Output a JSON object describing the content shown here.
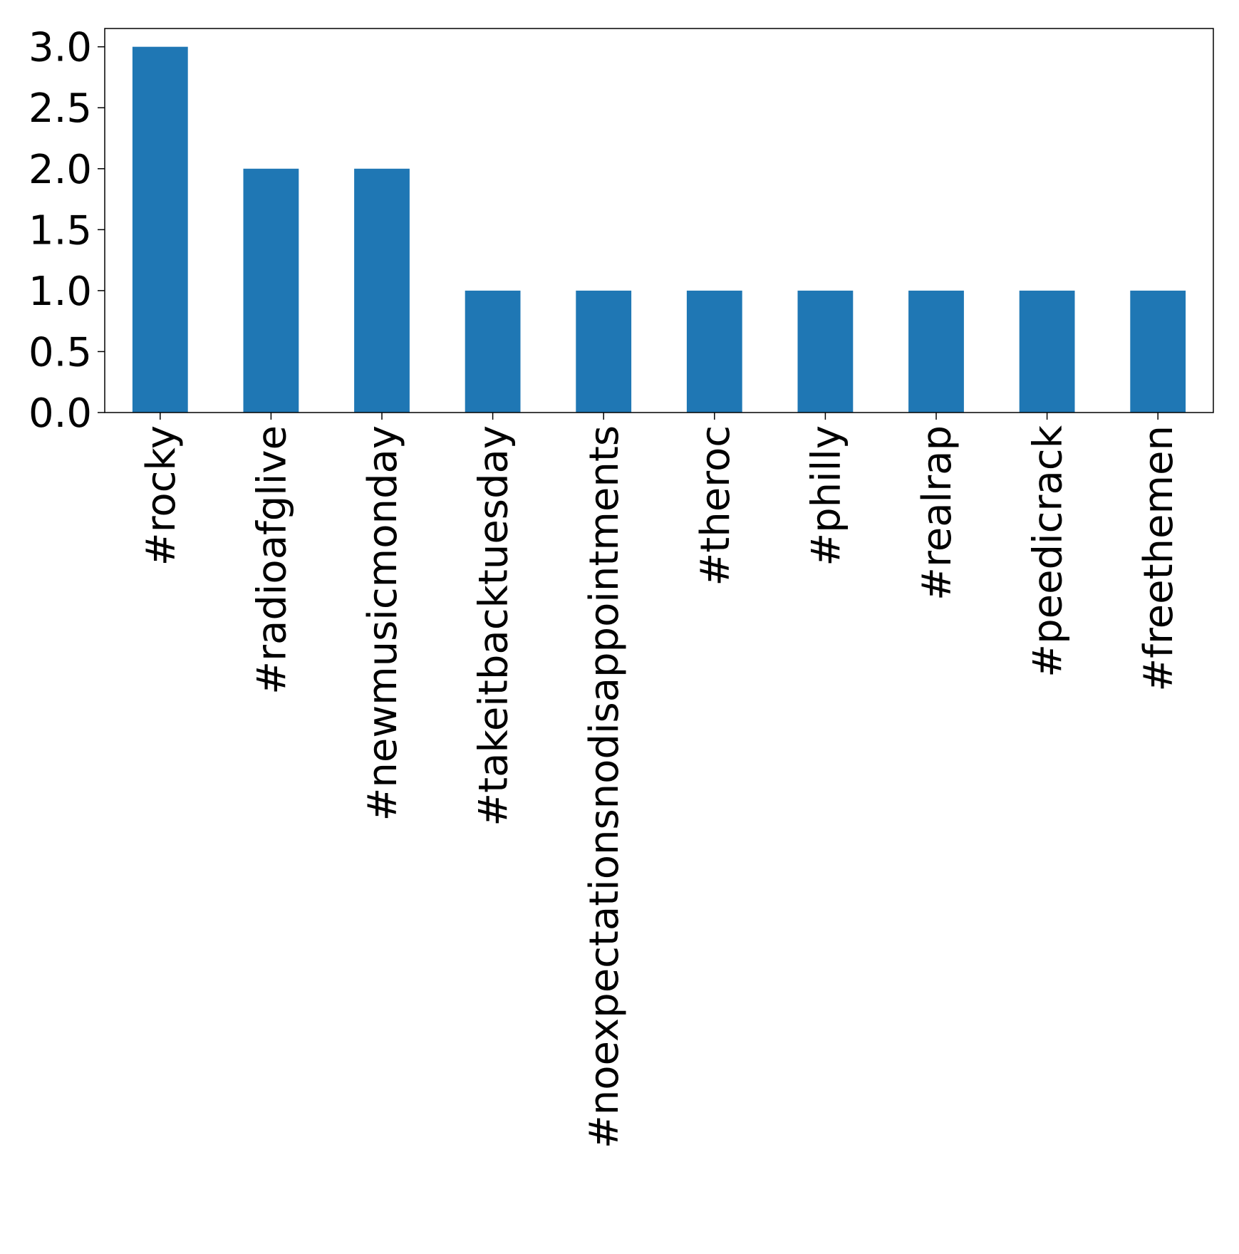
{
  "chart_data": {
    "type": "bar",
    "categories": [
      "#rocky",
      "#radioafglive",
      "#newmusicmonday",
      "#takeitbacktuesday",
      "#noexpectationsnodisappointments",
      "#theroc",
      "#philly",
      "#realrap",
      "#peedicrack",
      "#freethemen"
    ],
    "values": [
      3,
      2,
      2,
      1,
      1,
      1,
      1,
      1,
      1,
      1
    ],
    "title": "",
    "xlabel": "",
    "ylabel": "",
    "ylim": [
      0,
      3.15
    ],
    "yticks": [
      0.0,
      0.5,
      1.0,
      1.5,
      2.0,
      2.5,
      3.0
    ],
    "ytick_labels": [
      "0.0",
      "0.5",
      "1.0",
      "1.5",
      "2.0",
      "2.5",
      "3.0"
    ],
    "grid": false,
    "legend": "none",
    "bar_color": "#1f77b4"
  }
}
